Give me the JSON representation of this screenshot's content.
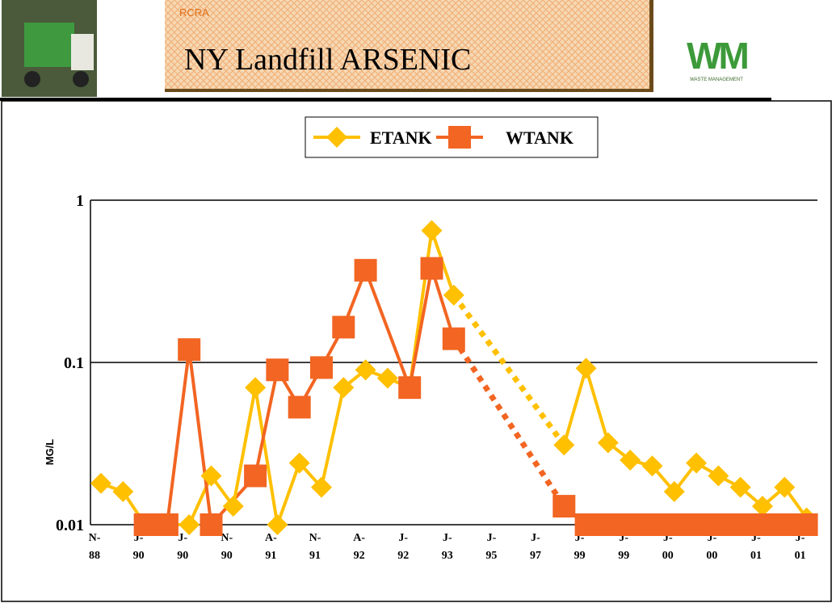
{
  "header": {
    "label": "RCRA",
    "logo_text": "WM",
    "logo_caption": "WASTE MANAGEMENT"
  },
  "chart_data": {
    "type": "line",
    "title": "NY Landfill ARSENIC",
    "ylabel": "MG/L",
    "log_scale": true,
    "ylim": [
      0.01,
      1
    ],
    "yticks": [
      0.01,
      0.1,
      1
    ],
    "grid": true,
    "legend": "top",
    "categories": [
      "N-88",
      null,
      "J-90",
      null,
      "J-90",
      null,
      "N-90",
      null,
      "A-91",
      null,
      "N-91",
      null,
      "A-92",
      null,
      "J-92",
      null,
      "J-93",
      null,
      "J-95",
      null,
      "J-97",
      null,
      "J-99",
      null,
      "J-99",
      null,
      "J-00",
      null,
      "J-00",
      null,
      "J-01",
      null,
      "J-01"
    ],
    "series": [
      {
        "name": "ETANK",
        "color": "#ffc000",
        "marker": "diamond",
        "values": [
          0.018,
          0.016,
          0.01,
          0.01,
          0.01,
          0.02,
          0.013,
          0.07,
          0.01,
          0.024,
          0.017,
          0.07,
          0.09,
          0.08,
          0.07,
          0.65,
          0.26,
          null,
          null,
          null,
          null,
          0.031,
          0.092,
          0.032,
          0.025,
          0.023,
          0.016,
          0.024,
          0.02,
          0.017,
          0.013,
          0.017,
          0.011
        ]
      },
      {
        "name": "WTANK",
        "color": "#f26522",
        "marker": "square",
        "values": [
          null,
          null,
          0.01,
          0.01,
          0.12,
          0.01,
          null,
          0.02,
          0.09,
          0.053,
          0.093,
          0.165,
          0.37,
          null,
          0.07,
          0.38,
          0.14,
          null,
          null,
          null,
          null,
          0.013,
          0.01,
          0.01,
          0.01,
          0.01,
          0.01,
          0.01,
          0.01,
          0.01,
          0.01,
          0.01,
          0.01
        ]
      }
    ]
  }
}
